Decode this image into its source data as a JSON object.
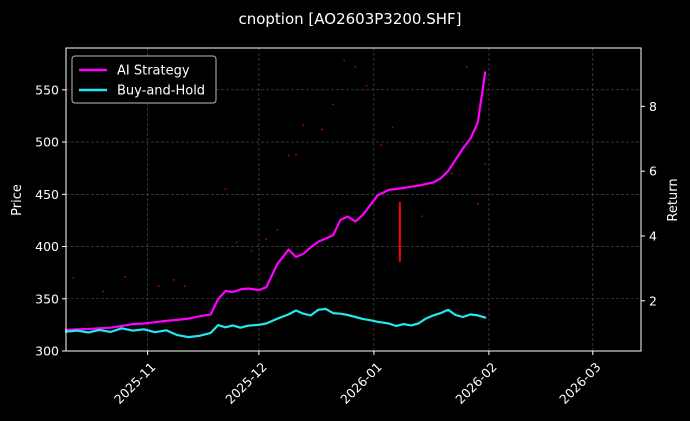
{
  "chart_data": {
    "type": "line",
    "title": "cnoption [AO2603P3200.SHF]",
    "ylabel_left": "Price",
    "ylabel_right": "Return",
    "x_range": [
      "2025-10-10",
      "2026-03-14"
    ],
    "x_ticks": [
      "2025-11-01",
      "2025-12-01",
      "2026-01-01",
      "2026-02-01",
      "2026-03-01"
    ],
    "x_tick_labels": [
      "2025-11",
      "2025-12",
      "2026-01",
      "2026-02",
      "2026-03"
    ],
    "ylim_left": [
      300,
      590
    ],
    "y_ticks_left": [
      300,
      350,
      400,
      450,
      500,
      550
    ],
    "ylim_right": [
      0.45,
      9.8
    ],
    "y_ticks_right": [
      2,
      4,
      6,
      8
    ],
    "grid": true,
    "legend_position": "top-left",
    "colors": {
      "ai": "#ff00ff",
      "bh": "#22e8f0",
      "drop": "#ff0000",
      "dots": "#cc0000",
      "grid": "#555555"
    },
    "series": [
      {
        "name": "AI Strategy",
        "axis": "right",
        "x": [
          "2025-10-10",
          "2025-10-13",
          "2025-10-16",
          "2025-10-19",
          "2025-10-22",
          "2025-10-25",
          "2025-10-28",
          "2025-10-31",
          "2025-11-03",
          "2025-11-06",
          "2025-11-09",
          "2025-11-12",
          "2025-11-15",
          "2025-11-18",
          "2025-11-20",
          "2025-11-22",
          "2025-11-24",
          "2025-11-26",
          "2025-11-28",
          "2025-12-01",
          "2025-12-03",
          "2025-12-06",
          "2025-12-09",
          "2025-12-11",
          "2025-12-13",
          "2025-12-15",
          "2025-12-17",
          "2025-12-19",
          "2025-12-21",
          "2025-12-23",
          "2025-12-25",
          "2025-12-27",
          "2025-12-29",
          "2025-12-31",
          "2026-01-02",
          "2026-01-05",
          "2026-01-07",
          "2026-01-09",
          "2026-01-11",
          "2026-01-13",
          "2026-01-15",
          "2026-01-17",
          "2026-01-19",
          "2026-01-21",
          "2026-01-23",
          "2026-01-25",
          "2026-01-27",
          "2026-01-29",
          "2026-01-31"
        ],
        "values": [
          1.1,
          1.12,
          1.13,
          1.15,
          1.17,
          1.22,
          1.28,
          1.3,
          1.34,
          1.38,
          1.41,
          1.45,
          1.52,
          1.58,
          2.05,
          2.3,
          2.27,
          2.35,
          2.38,
          2.33,
          2.42,
          3.14,
          3.58,
          3.35,
          3.45,
          3.65,
          3.82,
          3.92,
          4.02,
          4.5,
          4.6,
          4.45,
          4.65,
          4.95,
          5.25,
          5.42,
          5.45,
          5.48,
          5.52,
          5.55,
          5.6,
          5.65,
          5.78,
          6.0,
          6.35,
          6.7,
          7.0,
          7.5,
          9.05
        ]
      },
      {
        "name": "Buy-and-Hold",
        "axis": "right",
        "x": [
          "2025-10-10",
          "2025-10-13",
          "2025-10-16",
          "2025-10-19",
          "2025-10-22",
          "2025-10-25",
          "2025-10-28",
          "2025-10-31",
          "2025-11-03",
          "2025-11-06",
          "2025-11-09",
          "2025-11-12",
          "2025-11-15",
          "2025-11-18",
          "2025-11-20",
          "2025-11-22",
          "2025-11-24",
          "2025-11-26",
          "2025-11-28",
          "2025-12-01",
          "2025-12-03",
          "2025-12-06",
          "2025-12-09",
          "2025-12-11",
          "2025-12-13",
          "2025-12-15",
          "2025-12-17",
          "2025-12-19",
          "2025-12-21",
          "2025-12-23",
          "2025-12-25",
          "2025-12-27",
          "2025-12-29",
          "2025-12-31",
          "2026-01-02",
          "2026-01-05",
          "2026-01-07",
          "2026-01-09",
          "2026-01-11",
          "2026-01-13",
          "2026-01-15",
          "2026-01-17",
          "2026-01-19",
          "2026-01-21",
          "2026-01-23",
          "2026-01-25",
          "2026-01-27",
          "2026-01-29",
          "2026-01-31"
        ],
        "values": [
          1.05,
          1.08,
          1.02,
          1.1,
          1.04,
          1.15,
          1.08,
          1.12,
          1.03,
          1.09,
          0.94,
          0.88,
          0.92,
          1.01,
          1.25,
          1.18,
          1.24,
          1.17,
          1.23,
          1.26,
          1.3,
          1.45,
          1.58,
          1.7,
          1.6,
          1.55,
          1.72,
          1.75,
          1.62,
          1.6,
          1.56,
          1.5,
          1.44,
          1.4,
          1.35,
          1.3,
          1.22,
          1.28,
          1.24,
          1.3,
          1.45,
          1.55,
          1.62,
          1.72,
          1.56,
          1.5,
          1.58,
          1.55,
          1.48
        ]
      }
    ],
    "drop_segment": {
      "x": "2026-01-08",
      "from": 5.05,
      "to": 3.2
    },
    "scatter_points": {
      "axis": "left",
      "x": [
        "2025-10-12",
        "2025-10-20",
        "2025-10-26",
        "2025-11-04",
        "2025-11-08",
        "2025-11-11",
        "2025-11-22",
        "2025-11-25",
        "2025-11-29",
        "2025-12-03",
        "2025-12-06",
        "2025-12-09",
        "2025-12-11",
        "2025-12-13",
        "2025-12-18",
        "2025-12-21",
        "2025-12-24",
        "2025-12-27",
        "2025-12-30",
        "2026-01-03",
        "2026-01-06",
        "2026-01-14",
        "2026-01-22",
        "2026-01-26",
        "2026-01-29",
        "2026-01-31"
      ],
      "values": [
        370,
        357,
        371,
        362,
        368,
        362,
        455,
        404,
        396,
        407,
        416,
        487,
        488,
        516,
        512,
        536,
        578,
        572,
        554,
        497,
        514,
        429,
        470,
        572,
        441,
        479
      ]
    }
  }
}
